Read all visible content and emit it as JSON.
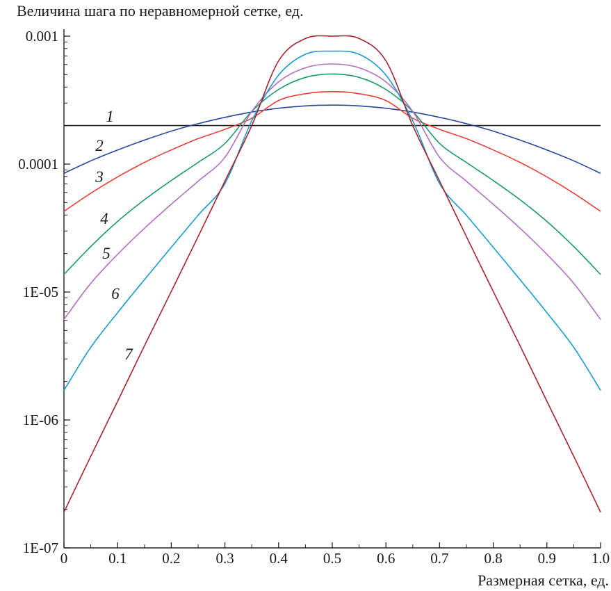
{
  "chart_data": {
    "type": "line",
    "ylabel": "Величина шага по неравномерной сетке, ед.",
    "xlabel": "Размерная сетка, ед.",
    "xlim": [
      0,
      1
    ],
    "ylim": [
      1e-07,
      0.0012
    ],
    "yscale": "log",
    "grid": false,
    "x_ticks": [
      "0",
      "0.1",
      "0.2",
      "0.3",
      "0.4",
      "0.5",
      "0.6",
      "0.7",
      "0.8",
      "0.9",
      "1.0"
    ],
    "y_ticks": [
      "1E-07",
      "1E-06",
      "1E-05",
      "0.0001",
      "0.001"
    ],
    "x": [
      0,
      0.05,
      0.1,
      0.15,
      0.2,
      0.25,
      0.3,
      0.35,
      0.4,
      0.45,
      0.5,
      0.55,
      0.6,
      0.65,
      0.7,
      0.75,
      0.8,
      0.85,
      0.9,
      0.95,
      1.0
    ],
    "series": [
      {
        "label": "1",
        "color": "#222222",
        "values": [
          0.0002,
          0.0002,
          0.0002,
          0.0002,
          0.0002,
          0.0002,
          0.0002,
          0.0002,
          0.0002,
          0.0002,
          0.0002,
          0.0002,
          0.0002,
          0.0002,
          0.0002,
          0.0002,
          0.0002,
          0.0002,
          0.0002,
          0.0002,
          0.0002
        ]
      },
      {
        "label": "2",
        "color": "#27479b",
        "values": [
          8.47e-05,
          0.000106,
          0.000129,
          0.000154,
          0.000181,
          0.000207,
          0.000232,
          0.000255,
          0.000273,
          0.000285,
          0.000289,
          0.000285,
          0.000273,
          0.000255,
          0.000232,
          0.000207,
          0.000181,
          0.000154,
          0.000129,
          0.000106,
          8.47e-05
        ]
      },
      {
        "label": "3",
        "color": "#e8403a",
        "values": [
          4.27e-05,
          5.92e-05,
          7.94e-05,
          0.000103,
          0.000129,
          0.000158,
          0.000187,
          0.000228,
          0.000314,
          0.000355,
          0.000369,
          0.000355,
          0.000314,
          0.000228,
          0.000187,
          0.000158,
          0.000129,
          0.000103,
          7.94e-05,
          5.92e-05,
          4.27e-05
        ]
      },
      {
        "label": "4",
        "color": "#1d9a6c",
        "values": [
          1.37e-05,
          2.27e-05,
          3.56e-05,
          5.26e-05,
          7.44e-05,
          0.000103,
          0.000145,
          0.000258,
          0.000383,
          0.000476,
          0.000506,
          0.000476,
          0.000383,
          0.000258,
          0.000145,
          0.000103,
          7.44e-05,
          5.26e-05,
          3.56e-05,
          2.27e-05,
          1.37e-05
        ]
      },
      {
        "label": "5",
        "color": "#b06fc0",
        "values": [
          6.1e-06,
          1.17e-05,
          1.97e-05,
          3.15e-05,
          4.85e-05,
          7.35e-05,
          0.000113,
          0.000258,
          0.000439,
          0.000566,
          0.000606,
          0.000566,
          0.000439,
          0.000258,
          0.000113,
          7.35e-05,
          4.85e-05,
          3.15e-05,
          1.97e-05,
          1.17e-05,
          6.1e-06
        ]
      },
      {
        "label": "6",
        "color": "#1a9bd0",
        "values": [
          1.7e-06,
          3.7e-06,
          6.9e-06,
          1.25e-05,
          2.24e-05,
          3.98e-05,
          7.04e-05,
          0.000218,
          0.000496,
          0.000722,
          0.000763,
          0.000722,
          0.000496,
          0.000218,
          7.04e-05,
          3.98e-05,
          2.24e-05,
          1.25e-05,
          6.9e-06,
          3.7e-06,
          1.7e-06
        ]
      },
      {
        "label": "7",
        "color": "#a3222c",
        "values": [
          1.9e-07,
          5.2e-07,
          1.4e-06,
          3.8e-06,
          1.01e-05,
          2.71e-05,
          7.36e-05,
          0.0002,
          0.000641,
          0.000958,
          0.001,
          0.000958,
          0.000641,
          0.0002,
          7.36e-05,
          2.71e-05,
          1.01e-05,
          3.8e-06,
          1.4e-06,
          5.2e-07,
          1.9e-07
        ]
      }
    ]
  }
}
